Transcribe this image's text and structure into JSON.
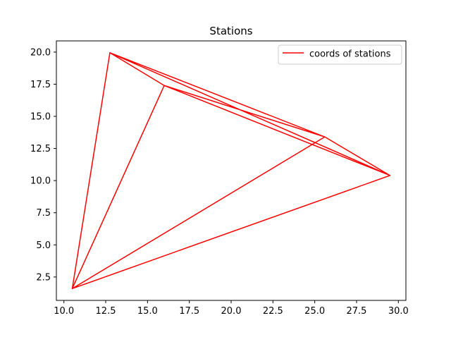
{
  "chart_data": {
    "type": "line",
    "title": "Stations",
    "xlabel": "",
    "ylabel": "",
    "xlim": [
      9.55,
      30.45
    ],
    "ylim": [
      0.68,
      20.87
    ],
    "xticks": [
      10.0,
      12.5,
      15.0,
      17.5,
      20.0,
      22.5,
      25.0,
      27.5,
      30.0
    ],
    "xtick_labels": [
      "10.0",
      "12.5",
      "15.0",
      "17.5",
      "20.0",
      "22.5",
      "25.0",
      "27.5",
      "30.0"
    ],
    "yticks": [
      2.5,
      5.0,
      7.5,
      10.0,
      12.5,
      15.0,
      17.5,
      20.0
    ],
    "ytick_labels": [
      "2.5",
      "5.0",
      "7.5",
      "10.0",
      "12.5",
      "15.0",
      "17.5",
      "20.0"
    ],
    "grid": false,
    "legend_position": "upper right",
    "series": [
      {
        "name": "coords of stations",
        "color": "#ff0000",
        "x": [
          10.5,
          12.75,
          16.0,
          10.5,
          25.6,
          29.5,
          12.75,
          25.6,
          16.0,
          29.5,
          10.5,
          29.5,
          16.0,
          25.6,
          12.75,
          10.5
        ],
        "y": [
          1.6,
          19.95,
          17.4,
          1.6,
          13.4,
          10.4,
          19.95,
          13.4,
          17.4,
          10.4,
          1.6,
          10.4,
          17.4,
          13.4,
          19.95,
          1.6
        ]
      }
    ]
  }
}
